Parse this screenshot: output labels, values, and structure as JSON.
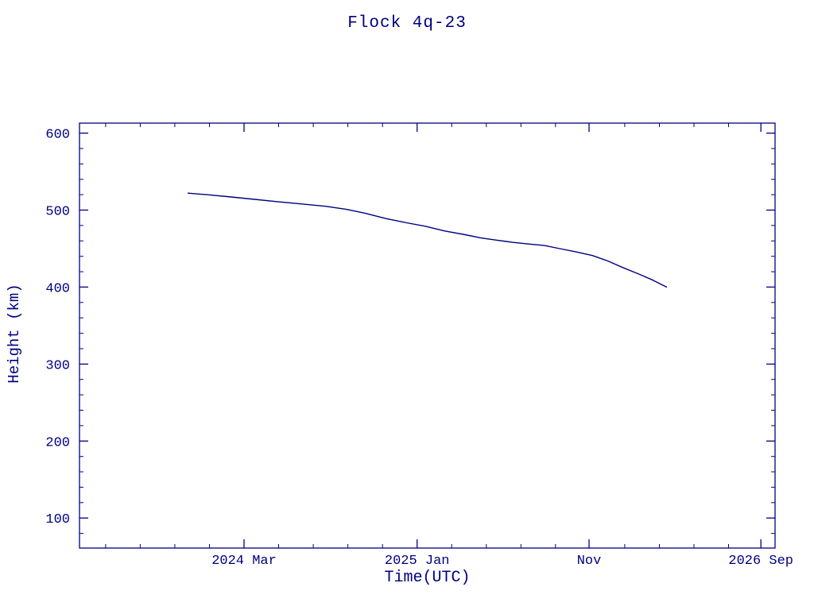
{
  "chart_data": {
    "type": "line",
    "title": "Flock 4q-23",
    "xlabel": "Time(UTC)",
    "ylabel": "Height (km)",
    "line_color": "#000080",
    "axis_color": "#000080",
    "background_color": "#ffffff",
    "grid": false,
    "legend": "none",
    "x_axis": {
      "type": "time",
      "range": [
        "2023-05-15",
        "2026-09-26"
      ],
      "major_ticks": [
        {
          "date": "2024-03-01",
          "label": "2024 Mar"
        },
        {
          "date": "2025-01-01",
          "label": "2025 Jan"
        },
        {
          "date": "2025-11-01",
          "label": "Nov"
        },
        {
          "date": "2026-09-01",
          "label": "2026 Sep"
        }
      ],
      "minor_divisions": 5
    },
    "y_axis": {
      "range": [
        61,
        613
      ],
      "major_ticks": [
        100,
        200,
        300,
        400,
        500,
        600
      ],
      "minor_step": 20
    },
    "series": [
      {
        "name": "Flock 4q-23",
        "points": [
          [
            "2023-11-23",
            522
          ],
          [
            "2023-12-26",
            520
          ],
          [
            "2024-02-07",
            517
          ],
          [
            "2024-03-20",
            514
          ],
          [
            "2024-04-29",
            511
          ],
          [
            "2024-06-11",
            508
          ],
          [
            "2024-07-23",
            505
          ],
          [
            "2024-08-29",
            501
          ],
          [
            "2024-10-01",
            496
          ],
          [
            "2024-11-07",
            489
          ],
          [
            "2024-12-10",
            484
          ],
          [
            "2025-01-16",
            479
          ],
          [
            "2025-02-18",
            473
          ],
          [
            "2025-03-27",
            468
          ],
          [
            "2025-04-23",
            464
          ],
          [
            "2025-05-21",
            461
          ],
          [
            "2025-06-20",
            458
          ],
          [
            "2025-07-17",
            456
          ],
          [
            "2025-08-14",
            454
          ],
          [
            "2025-09-10",
            450
          ],
          [
            "2025-10-08",
            446
          ],
          [
            "2025-11-07",
            441
          ],
          [
            "2025-12-04",
            434
          ],
          [
            "2026-01-01",
            425
          ],
          [
            "2026-01-28",
            417
          ],
          [
            "2026-02-22",
            409
          ],
          [
            "2026-03-18",
            400
          ]
        ]
      }
    ]
  }
}
